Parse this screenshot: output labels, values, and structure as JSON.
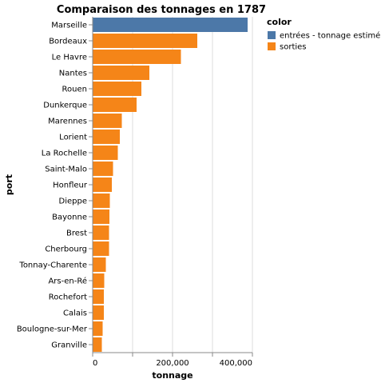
{
  "chart_data": {
    "type": "bar",
    "orientation": "horizontal",
    "title": "Comparaison des tonnages en 1787",
    "xlabel": "tonnage",
    "ylabel": "port",
    "xlim": [
      0,
      400000
    ],
    "xticks": [
      0,
      200000,
      400000
    ],
    "xtick_labels": [
      "0",
      "200,000",
      "400,000"
    ],
    "grid": true,
    "legend": {
      "title": "color",
      "position": "top-right",
      "entries": [
        {
          "label": "entrées - tonnage estimé",
          "color": "#4c78a8"
        },
        {
          "label": "sorties",
          "color": "#f58518"
        }
      ]
    },
    "categories": [
      "Marseille",
      "Bordeaux",
      "Le Havre",
      "Nantes",
      "Rouen",
      "Dunkerque",
      "Marennes",
      "Lorient",
      "La Rochelle",
      "Saint-Malo",
      "Honfleur",
      "Dieppe",
      "Bayonne",
      "Brest",
      "Cherbourg",
      "Tonnay-Charente",
      "Ars-en-Ré",
      "Rochefort",
      "Calais",
      "Boulogne-sur-Mer",
      "Granville"
    ],
    "bars": [
      {
        "category": "Marseille",
        "value": 388000,
        "series": 0
      },
      {
        "category": "Bordeaux",
        "value": 262000,
        "series": 1
      },
      {
        "category": "Le Havre",
        "value": 221000,
        "series": 1
      },
      {
        "category": "Nantes",
        "value": 142000,
        "series": 1
      },
      {
        "category": "Rouen",
        "value": 122000,
        "series": 1
      },
      {
        "category": "Dunkerque",
        "value": 110000,
        "series": 1
      },
      {
        "category": "Marennes",
        "value": 73000,
        "series": 1
      },
      {
        "category": "Lorient",
        "value": 68000,
        "series": 1
      },
      {
        "category": "La Rochelle",
        "value": 63000,
        "series": 1
      },
      {
        "category": "Saint-Malo",
        "value": 51000,
        "series": 1
      },
      {
        "category": "Honfleur",
        "value": 48000,
        "series": 1
      },
      {
        "category": "Dieppe",
        "value": 43000,
        "series": 1
      },
      {
        "category": "Bayonne",
        "value": 42000,
        "series": 1
      },
      {
        "category": "Brest",
        "value": 41000,
        "series": 1
      },
      {
        "category": "Cherbourg",
        "value": 41000,
        "series": 1
      },
      {
        "category": "Tonnay-Charente",
        "value": 33000,
        "series": 1
      },
      {
        "category": "Ars-en-Ré",
        "value": 29000,
        "series": 1
      },
      {
        "category": "Rochefort",
        "value": 28000,
        "series": 1
      },
      {
        "category": "Calais",
        "value": 28000,
        "series": 1
      },
      {
        "category": "Boulogne-sur-Mer",
        "value": 25000,
        "series": 1
      },
      {
        "category": "Granville",
        "value": 23000,
        "series": 1
      }
    ]
  }
}
